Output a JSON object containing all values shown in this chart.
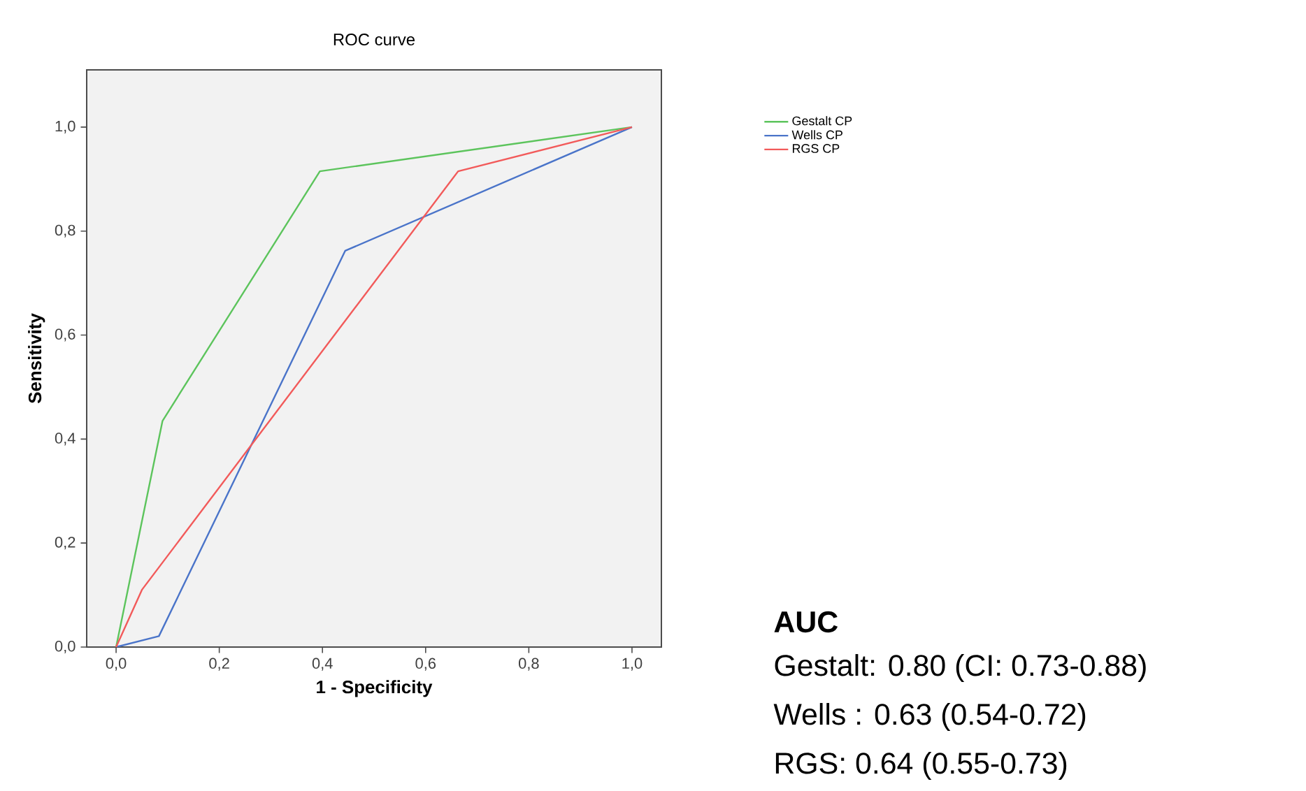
{
  "chart_data": {
    "type": "line",
    "title": "ROC curve",
    "xlabel": "1 - Specificity",
    "ylabel": "Sensitivity",
    "xlim": [
      -0.057,
      1.057
    ],
    "ylim": [
      0,
      1.11
    ],
    "xticks": [
      {
        "value": 0,
        "label": "0,0"
      },
      {
        "value": 0.2,
        "label": "0,2"
      },
      {
        "value": 0.4,
        "label": "0,4"
      },
      {
        "value": 0.6,
        "label": "0,6"
      },
      {
        "value": 0.8,
        "label": "0,8"
      },
      {
        "value": 1,
        "label": "1,0"
      }
    ],
    "yticks": [
      {
        "value": 0,
        "label": "0,0"
      },
      {
        "value": 0.2,
        "label": "0,2"
      },
      {
        "value": 0.4,
        "label": "0,4"
      },
      {
        "value": 0.6,
        "label": "0,6"
      },
      {
        "value": 0.8,
        "label": "0,8"
      },
      {
        "value": 1,
        "label": "1,0"
      }
    ],
    "series": [
      {
        "name": "Gestalt CP",
        "color": "#5cc45c",
        "x": [
          0,
          0.09,
          0.395,
          1
        ],
        "values": [
          0,
          0.435,
          0.915,
          1
        ]
      },
      {
        "name": "Wells CP",
        "color": "#4a74c9",
        "x": [
          0,
          0.083,
          0.444,
          1
        ],
        "values": [
          0,
          0.021,
          0.762,
          1
        ]
      },
      {
        "name": "RGS CP",
        "color": "#f25a5a",
        "x": [
          0,
          0.05,
          0.663,
          1
        ],
        "values": [
          0,
          0.11,
          0.915,
          1
        ]
      }
    ],
    "legend": "right",
    "marker": "none",
    "line_style": "solid",
    "annotations": [
      "AUC",
      "Gestalt: 0.80 (CI: 0.73-0.88)",
      "Wells : 0.63 (0.54-0.72)",
      "RGS: 0.64 (0.55-0.73)"
    ]
  }
}
